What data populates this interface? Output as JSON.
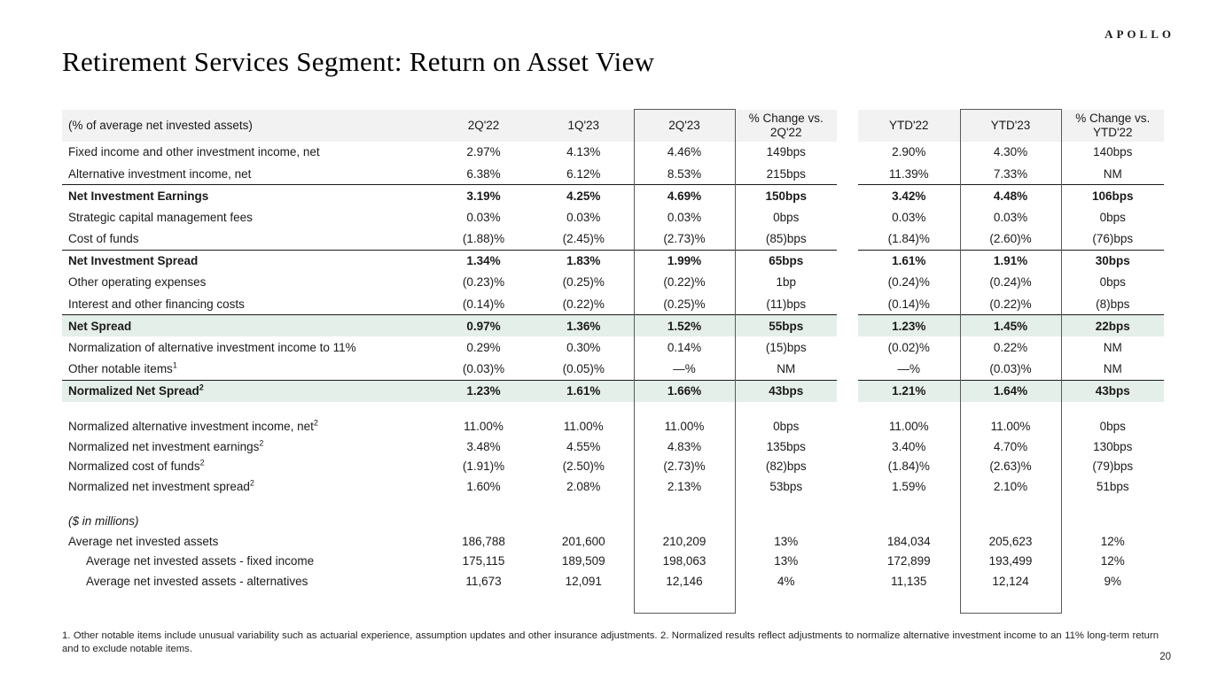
{
  "slide": {
    "logo": "APOLLO",
    "title": "Retirement Services Segment: Return on Asset View",
    "page_number": "20",
    "footnote": "1. Other notable items include unusual variability such as actuarial experience, assumption updates and other insurance adjustments. 2. Normalized results reflect adjustments to normalize alternative investment income to an 11% long-term return and to exclude notable items."
  },
  "colors": {
    "header_background": "#f2f2f2",
    "highlight_background": "#e5efe9",
    "rule_line": "#1a1a1a",
    "box_border": "#58595b"
  },
  "table": {
    "header": {
      "label": "(% of average net invested assets)",
      "columns": [
        "2Q'22",
        "1Q'23",
        "2Q'23",
        "% Change vs. 2Q'22",
        "YTD'22",
        "YTD'23",
        "% Change vs. YTD'22"
      ]
    },
    "rows": [
      {
        "label": "Fixed income and other investment income, net",
        "sup": "",
        "style": "",
        "values": [
          "2.97%",
          "4.13%",
          "4.46%",
          "149bps",
          "2.90%",
          "4.30%",
          "140bps"
        ]
      },
      {
        "label": "Alternative investment income, net",
        "sup": "",
        "style": "",
        "values": [
          "6.38%",
          "6.12%",
          "8.53%",
          "215bps",
          "11.39%",
          "7.33%",
          "NM"
        ]
      },
      {
        "label": "Net Investment Earnings",
        "sup": "",
        "style": "bold top-border",
        "values": [
          "3.19%",
          "4.25%",
          "4.69%",
          "150bps",
          "3.42%",
          "4.48%",
          "106bps"
        ]
      },
      {
        "label": "Strategic capital management fees",
        "sup": "",
        "style": "",
        "values": [
          "0.03%",
          "0.03%",
          "0.03%",
          "0bps",
          "0.03%",
          "0.03%",
          "0bps"
        ]
      },
      {
        "label": "Cost of funds",
        "sup": "",
        "style": "",
        "values": [
          "(1.88)%",
          "(2.45)%",
          "(2.73)%",
          "(85)bps",
          "(1.84)%",
          "(2.60)%",
          "(76)bps"
        ]
      },
      {
        "label": "Net Investment Spread",
        "sup": "",
        "style": "bold top-border",
        "values": [
          "1.34%",
          "1.83%",
          "1.99%",
          "65bps",
          "1.61%",
          "1.91%",
          "30bps"
        ]
      },
      {
        "label": "Other operating expenses",
        "sup": "",
        "style": "",
        "values": [
          "(0.23)%",
          "(0.25)%",
          "(0.22)%",
          "1bp",
          "(0.24)%",
          "(0.24)%",
          "0bps"
        ]
      },
      {
        "label": "Interest and other financing costs",
        "sup": "",
        "style": "",
        "values": [
          "(0.14)%",
          "(0.22)%",
          "(0.25)%",
          "(11)bps",
          "(0.14)%",
          "(0.22)%",
          "(8)bps"
        ]
      },
      {
        "label": "Net Spread",
        "sup": "",
        "style": "bold top-border highlight",
        "values": [
          "0.97%",
          "1.36%",
          "1.52%",
          "55bps",
          "1.23%",
          "1.45%",
          "22bps"
        ]
      },
      {
        "label": "Normalization of alternative investment income to 11%",
        "sup": "",
        "style": "",
        "values": [
          "0.29%",
          "0.30%",
          "0.14%",
          "(15)bps",
          "(0.02)%",
          "0.22%",
          "NM"
        ]
      },
      {
        "label": "Other notable items",
        "sup": "1",
        "style": "",
        "values": [
          "(0.03)%",
          "(0.05)%",
          "—%",
          "NM",
          "—%",
          "(0.03)%",
          "NM"
        ]
      },
      {
        "label": "Normalized Net Spread",
        "sup": "2",
        "style": "bold top-border highlight",
        "values": [
          "1.23%",
          "1.61%",
          "1.66%",
          "43bps",
          "1.21%",
          "1.64%",
          "43bps"
        ]
      },
      {
        "label": "",
        "sup": "",
        "style": "blank",
        "values": [
          "",
          "",
          "",
          "",
          "",
          "",
          ""
        ]
      },
      {
        "label": "Normalized alternative investment income, net",
        "sup": "2",
        "style": "compact",
        "values": [
          "11.00%",
          "11.00%",
          "11.00%",
          "0bps",
          "11.00%",
          "11.00%",
          "0bps"
        ]
      },
      {
        "label": "Normalized net investment earnings",
        "sup": "2",
        "style": "compact",
        "values": [
          "3.48%",
          "4.55%",
          "4.83%",
          "135bps",
          "3.40%",
          "4.70%",
          "130bps"
        ]
      },
      {
        "label": "Normalized cost of funds",
        "sup": "2",
        "style": "compact",
        "values": [
          "(1.91)%",
          "(2.50)%",
          "(2.73)%",
          "(82)bps",
          "(1.84)%",
          "(2.63)%",
          "(79)bps"
        ]
      },
      {
        "label": "Normalized net investment spread",
        "sup": "2",
        "style": "compact",
        "values": [
          "1.60%",
          "2.08%",
          "2.13%",
          "53bps",
          "1.59%",
          "2.10%",
          "51bps"
        ]
      },
      {
        "label": "",
        "sup": "",
        "style": "blank",
        "values": [
          "",
          "",
          "",
          "",
          "",
          "",
          ""
        ]
      },
      {
        "label": "($ in millions)",
        "sup": "",
        "style": "compact italic",
        "values": [
          "",
          "",
          "",
          "",
          "",
          "",
          ""
        ]
      },
      {
        "label": "Average net invested assets",
        "sup": "",
        "style": "compact",
        "values": [
          "186,788",
          "201,600",
          "210,209",
          "13%",
          "184,034",
          "205,623",
          "12%"
        ]
      },
      {
        "label": "Average net invested assets - fixed income",
        "sup": "",
        "style": "compact indent",
        "values": [
          "175,115",
          "189,509",
          "198,063",
          "13%",
          "172,899",
          "193,499",
          "12%"
        ]
      },
      {
        "label": "Average net invested assets - alternatives",
        "sup": "",
        "style": "compact indent",
        "values": [
          "11,673",
          "12,091",
          "12,146",
          "4%",
          "11,135",
          "12,124",
          "9%"
        ]
      },
      {
        "label": "",
        "sup": "",
        "style": "filler",
        "values": [
          "",
          "",
          "",
          "",
          "",
          "",
          ""
        ]
      }
    ]
  }
}
